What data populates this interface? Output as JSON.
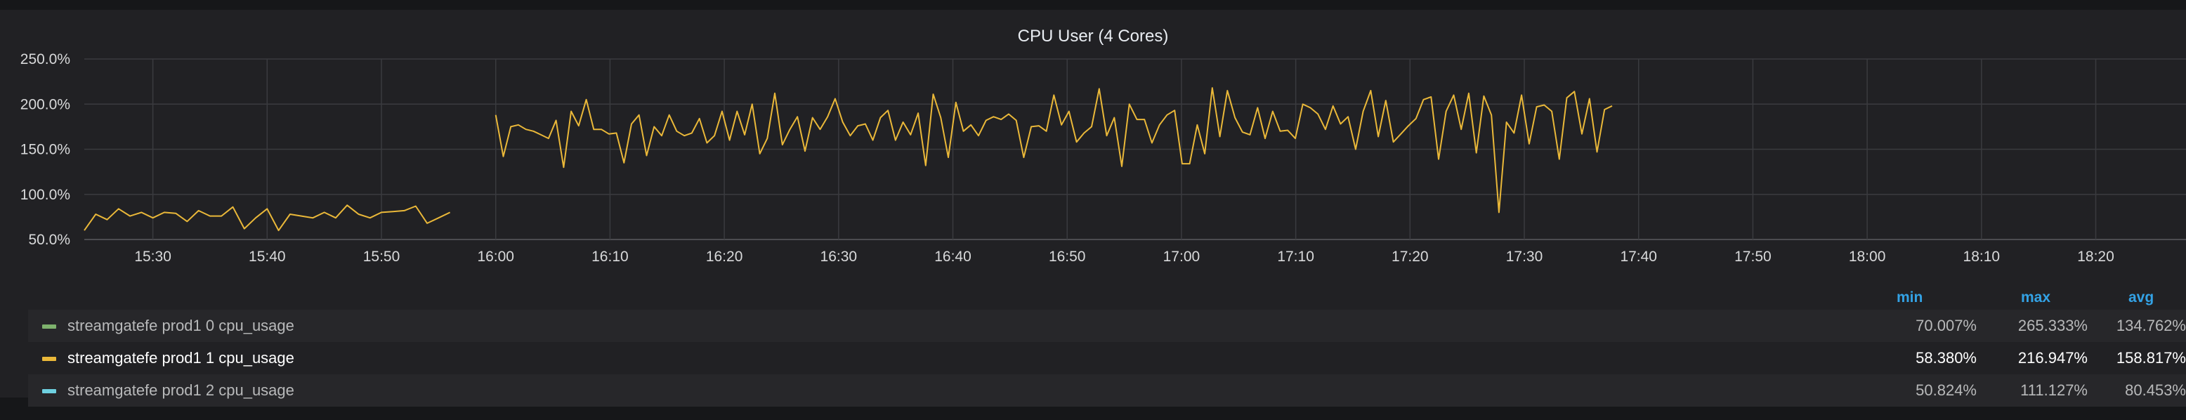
{
  "panel": {
    "title": "CPU User (4 Cores)"
  },
  "chart_data": {
    "type": "line",
    "title": "CPU User (4 Cores)",
    "y_ticks": [
      "250.0%",
      "200.0%",
      "150.0%",
      "100.0%",
      "50.0%"
    ],
    "ylim": [
      50,
      250
    ],
    "y_unit": "%",
    "x_ticks": [
      "15:30",
      "15:40",
      "15:50",
      "16:00",
      "16:10",
      "16:20",
      "16:30",
      "16:40",
      "16:50",
      "17:00",
      "17:10",
      "17:20",
      "17:30",
      "17:40",
      "17:50",
      "18:00",
      "18:10",
      "18:20"
    ],
    "x_start": "15:24",
    "x_step_min": 1,
    "grid": true,
    "series": [
      {
        "name": "streamgatefe prod1 1 cpu_usage",
        "color": "#eab839",
        "segments": [
          [
            60,
            78,
            72,
            84,
            76,
            80,
            74,
            80,
            79,
            70,
            82,
            76,
            76,
            86,
            62,
            74,
            84,
            60,
            78,
            76,
            74,
            80,
            74,
            88,
            78,
            74,
            80,
            81,
            82,
            87,
            68,
            74,
            80
          ],
          [
            188,
            142,
            175,
            177,
            172,
            170,
            166,
            162,
            182,
            130,
            192,
            176,
            205,
            172,
            172,
            167,
            168,
            135,
            178,
            188,
            143,
            175,
            165,
            188,
            170,
            165,
            168,
            184,
            157,
            165,
            192,
            160,
            192,
            166,
            200,
            145,
            162,
            212,
            155,
            172,
            186,
            148,
            185,
            172,
            186,
            206,
            180,
            165,
            176,
            178,
            160,
            185,
            193,
            160,
            180,
            166,
            190,
            132,
            211,
            185,
            141,
            202,
            170,
            177,
            165,
            182,
            186,
            183,
            189,
            182,
            141,
            175,
            176,
            170,
            210,
            177,
            192,
            158,
            168,
            175,
            217,
            165,
            185,
            131,
            200,
            183,
            183,
            157,
            177,
            188,
            193,
            134,
            134,
            177,
            145,
            218,
            164,
            215,
            185,
            169,
            166,
            196,
            162,
            192,
            170,
            171,
            162,
            200,
            196,
            189,
            172,
            198,
            178,
            186,
            150,
            192,
            215,
            164,
            204,
            158,
            167,
            176,
            184,
            205,
            208,
            139,
            192,
            210,
            172,
            212,
            146,
            209,
            188,
            80,
            180,
            168,
            210,
            156,
            197,
            199,
            192,
            139,
            207,
            214,
            167,
            206,
            147,
            194,
            198
          ]
        ],
        "segment_start_min": [
          0,
          36
        ]
      }
    ]
  },
  "legend": {
    "headers": {
      "min": "min",
      "max": "max",
      "avg": "avg"
    },
    "items": [
      {
        "name": "streamgatefe prod1 0 cpu_usage",
        "color": "#7eb26d",
        "min": "70.007%",
        "max": "265.333%",
        "avg": "134.762%"
      },
      {
        "name": "streamgatefe prod1 1 cpu_usage",
        "color": "#eab839",
        "min": "58.380%",
        "max": "216.947%",
        "avg": "158.817%"
      },
      {
        "name": "streamgatefe prod1 2 cpu_usage",
        "color": "#6ed0e0",
        "min": "50.824%",
        "max": "111.127%",
        "avg": "80.453%"
      }
    ]
  }
}
